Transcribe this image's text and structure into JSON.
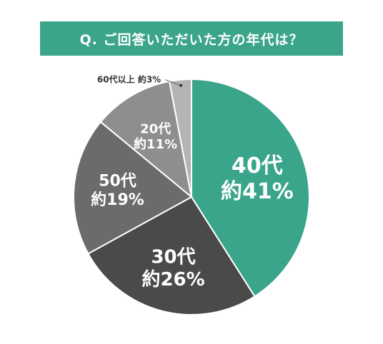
{
  "chart_data": {
    "type": "pie",
    "title": "Q. ご回答いただいた方の年代は？",
    "slices": [
      {
        "category": "40代",
        "label": "約41%",
        "value": 41,
        "color": "#3aa58b",
        "text_color": "#ffffff"
      },
      {
        "category": "30代",
        "label": "約26%",
        "value": 26,
        "color": "#4a4a4a",
        "text_color": "#ffffff"
      },
      {
        "category": "50代",
        "label": "約19%",
        "value": 19,
        "color": "#6b6b6b",
        "text_color": "#ffffff"
      },
      {
        "category": "20代",
        "label": "約11%",
        "value": 11,
        "color": "#8e8e8e",
        "text_color": "#ffffff"
      },
      {
        "category": "60代以上",
        "label": "約3%",
        "value": 3,
        "color": "#b4b4b4",
        "text_color": "#333333"
      }
    ]
  }
}
